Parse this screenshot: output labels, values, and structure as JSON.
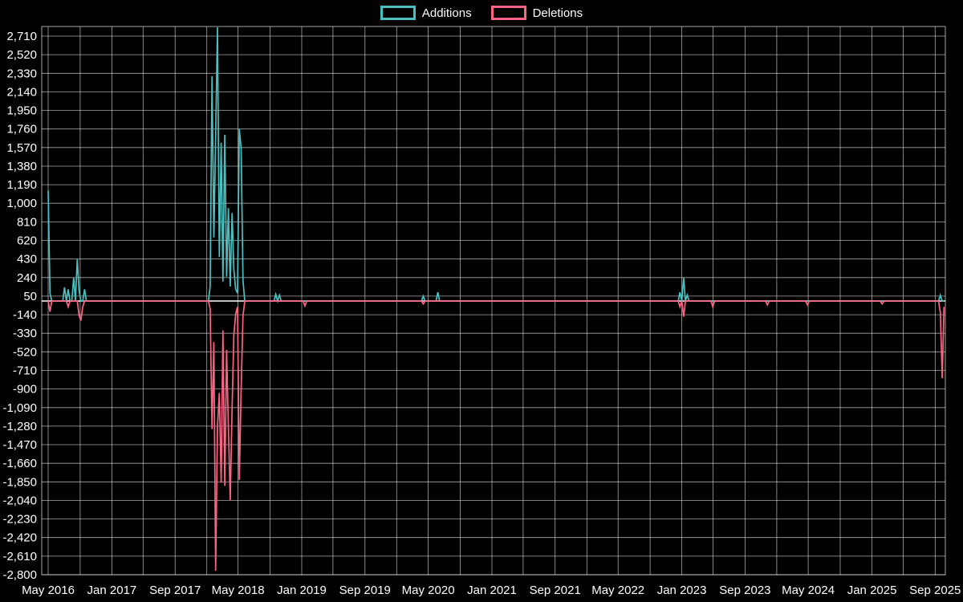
{
  "legend": {
    "items": [
      {
        "label": "Additions",
        "color": "#4bc0c0"
      },
      {
        "label": "Deletions",
        "color": "#ff6384"
      }
    ]
  },
  "chart_data": {
    "type": "line",
    "title": "",
    "xlabel": "",
    "ylabel": "",
    "background_color": "#000000",
    "text_color": "#ffffff",
    "grid": true,
    "grid_color": "rgba(255,255,255,0.65)",
    "zero_line_color": "#ffffff",
    "legend_position": "top-center",
    "ylim": [
      -2800,
      2710
    ],
    "y_tick_step": 190,
    "y_ticks": [
      2710,
      2520,
      2330,
      2140,
      1950,
      1760,
      1570,
      1380,
      1190,
      1000,
      810,
      620,
      430,
      240,
      50,
      -140,
      -330,
      -520,
      -710,
      -900,
      -1090,
      -1280,
      -1470,
      -1660,
      -1850,
      -2040,
      -2230,
      -2420,
      -2610,
      -2800
    ],
    "x_axis": {
      "start_month": "2016-05",
      "end_week": "2025-10-05",
      "grid_step_months": 4,
      "total_months": 112
    },
    "x_ticks": [
      {
        "label": "May 2016",
        "month": 0
      },
      {
        "label": "Jan 2017",
        "month": 8
      },
      {
        "label": "Sep 2017",
        "month": 16
      },
      {
        "label": "May 2018",
        "month": 24
      },
      {
        "label": "Jan 2019",
        "month": 32
      },
      {
        "label": "Sep 2019",
        "month": 40
      },
      {
        "label": "May 2020",
        "month": 48
      },
      {
        "label": "Jan 2021",
        "month": 56
      },
      {
        "label": "Sep 2021",
        "month": 64
      },
      {
        "label": "May 2022",
        "month": 72
      },
      {
        "label": "Jan 2023",
        "month": 80
      },
      {
        "label": "Sep 2023",
        "month": 88
      },
      {
        "label": "May 2024",
        "month": 96
      },
      {
        "label": "Jan 2025",
        "month": 104
      },
      {
        "label": "Sep 2025",
        "month": 112
      }
    ],
    "series": [
      {
        "name": "Additions",
        "color": "#4bc0c0",
        "baseline": 0,
        "points": [
          {
            "date": "2016-05-01",
            "value": 1130
          },
          {
            "date": "2016-05-08",
            "value": 80
          },
          {
            "date": "2016-07-03",
            "value": 140
          },
          {
            "date": "2016-07-17",
            "value": 120
          },
          {
            "date": "2016-08-07",
            "value": 240
          },
          {
            "date": "2016-08-21",
            "value": 430
          },
          {
            "date": "2016-08-28",
            "value": 100
          },
          {
            "date": "2016-09-18",
            "value": 120
          },
          {
            "date": "2018-01-14",
            "value": 150
          },
          {
            "date": "2018-01-21",
            "value": 2300
          },
          {
            "date": "2018-01-28",
            "value": 650
          },
          {
            "date": "2018-02-04",
            "value": 1680
          },
          {
            "date": "2018-02-11",
            "value": 2800
          },
          {
            "date": "2018-02-18",
            "value": 450
          },
          {
            "date": "2018-02-25",
            "value": 1620
          },
          {
            "date": "2018-03-04",
            "value": 200
          },
          {
            "date": "2018-03-11",
            "value": 1700
          },
          {
            "date": "2018-03-18",
            "value": 250
          },
          {
            "date": "2018-03-25",
            "value": 950
          },
          {
            "date": "2018-04-01",
            "value": 150
          },
          {
            "date": "2018-04-08",
            "value": 900
          },
          {
            "date": "2018-04-15",
            "value": 320
          },
          {
            "date": "2018-04-22",
            "value": 120
          },
          {
            "date": "2018-04-29",
            "value": 80
          },
          {
            "date": "2018-05-06",
            "value": 1760
          },
          {
            "date": "2018-05-13",
            "value": 1560
          },
          {
            "date": "2018-05-20",
            "value": 210
          },
          {
            "date": "2018-09-23",
            "value": 70
          },
          {
            "date": "2018-10-07",
            "value": 60
          },
          {
            "date": "2020-04-12",
            "value": 50
          },
          {
            "date": "2020-06-07",
            "value": 90
          },
          {
            "date": "2022-12-25",
            "value": 90
          },
          {
            "date": "2023-01-08",
            "value": 240
          },
          {
            "date": "2023-01-22",
            "value": 60
          },
          {
            "date": "2025-09-21",
            "value": 60
          }
        ]
      },
      {
        "name": "Deletions",
        "color": "#ff6384",
        "baseline": 0,
        "points": [
          {
            "date": "2016-05-08",
            "value": -110
          },
          {
            "date": "2016-07-17",
            "value": -60
          },
          {
            "date": "2016-08-28",
            "value": -150
          },
          {
            "date": "2016-09-04",
            "value": -200
          },
          {
            "date": "2016-09-11",
            "value": -60
          },
          {
            "date": "2018-01-14",
            "value": -80
          },
          {
            "date": "2018-01-21",
            "value": -1310
          },
          {
            "date": "2018-01-28",
            "value": -420
          },
          {
            "date": "2018-02-04",
            "value": -2760
          },
          {
            "date": "2018-02-11",
            "value": -1290
          },
          {
            "date": "2018-02-18",
            "value": -940
          },
          {
            "date": "2018-02-25",
            "value": -1860
          },
          {
            "date": "2018-03-04",
            "value": -300
          },
          {
            "date": "2018-03-11",
            "value": -1890
          },
          {
            "date": "2018-03-18",
            "value": -500
          },
          {
            "date": "2018-03-25",
            "value": -1300
          },
          {
            "date": "2018-04-01",
            "value": -2040
          },
          {
            "date": "2018-04-08",
            "value": -1100
          },
          {
            "date": "2018-04-15",
            "value": -350
          },
          {
            "date": "2018-04-22",
            "value": -130
          },
          {
            "date": "2018-04-29",
            "value": -60
          },
          {
            "date": "2018-05-06",
            "value": -1830
          },
          {
            "date": "2018-05-13",
            "value": -900
          },
          {
            "date": "2018-05-20",
            "value": -150
          },
          {
            "date": "2019-01-13",
            "value": -50
          },
          {
            "date": "2020-04-12",
            "value": -30
          },
          {
            "date": "2022-12-25",
            "value": -60
          },
          {
            "date": "2023-01-08",
            "value": -160
          },
          {
            "date": "2023-04-30",
            "value": -60
          },
          {
            "date": "2023-11-26",
            "value": -40
          },
          {
            "date": "2024-04-28",
            "value": -40
          },
          {
            "date": "2025-02-09",
            "value": -30
          },
          {
            "date": "2025-09-21",
            "value": -120
          },
          {
            "date": "2025-09-28",
            "value": -790
          },
          {
            "date": "2025-10-05",
            "value": -60
          }
        ]
      }
    ]
  }
}
